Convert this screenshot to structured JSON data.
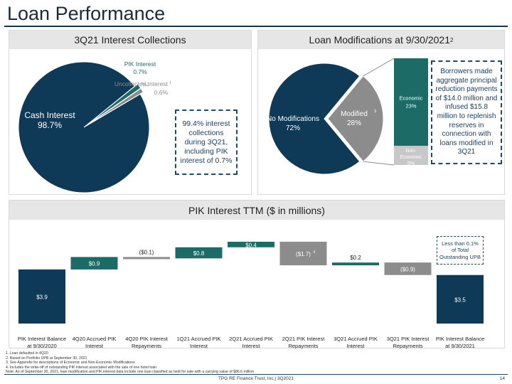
{
  "page": {
    "title": "Loan Performance",
    "footer_center": "TPG RE Finance Trust, Inc.| 3Q2021",
    "page_number": "14",
    "footnotes": [
      "1. Loan defaulted in 4Q20",
      "2. Based on Portfolio UPB at September 30, 2021",
      "3. See Appendix for descriptions of Economic and Non-Economic Modifications",
      "4. Includes the write-off of outstanding PIK interest associated with the sale of one hotel loan",
      "Note: As of September 30, 2021, loan modification and PIK interest data include one loan classified as held for sale with a carrying value of $86.6 million"
    ]
  },
  "panels": {
    "collections_title": "3Q21 Interest Collections",
    "modifications_title": "Loan Modifications at 9/30/2021",
    "modifications_title_sup": "2",
    "pik_title": "PIK Interest TTM ($ in millions)"
  },
  "callouts": {
    "collections": "99.4% interest collections during 3Q21, including PIK interest of 0.7%",
    "modifications": "Borrowers made aggregate principal reduction payments of $14.0 million and infused $15.8 million to replenish reserves in connection with loans modified in 3Q21",
    "pik": "Less than 0.1% of Total Outstanding UPB"
  },
  "chart_data": [
    {
      "type": "pie",
      "title": "3Q21 Interest Collections",
      "slices": [
        {
          "label": "Cash Interest",
          "value": 98.7,
          "display": "98.7%",
          "color": "#0f3a57"
        },
        {
          "label": "PIK Interest",
          "value": 0.7,
          "display": "0.7%",
          "color": "#1d6b66"
        },
        {
          "label": "Uncollected Interest",
          "label_sup": "1",
          "value": 0.6,
          "display": "0.6%",
          "color": "#8c8c8c"
        }
      ]
    },
    {
      "type": "pie",
      "title": "Loan Modifications at 9/30/2021",
      "slices": [
        {
          "label": "No Modifications",
          "value": 72,
          "display": "72%",
          "color": "#0f3a57"
        },
        {
          "label": "Modified",
          "label_sup": "3",
          "value": 28,
          "display": "28%",
          "color": "#8c8c8c"
        }
      ],
      "breakdown": [
        {
          "label": "Economic",
          "value": 23,
          "display": "23%",
          "color": "#1d6b66"
        },
        {
          "label": "Non-Economic",
          "value": 5,
          "display": "5%",
          "color": "#c8c8c8"
        }
      ]
    },
    {
      "type": "bar",
      "subtype": "waterfall",
      "title": "PIK Interest TTM ($ in millions)",
      "categories": [
        "PIK Interest Balance at 9/30/2020",
        "4Q20 Accrued PIK Interest",
        "4Q20 PIK Interest Repayments",
        "1Q21 Accrued PIK Interest",
        "2Q21 Accrued PIK Interest",
        "2Q21 PIK Interest Repayments",
        "3Q21 Accrued PIK Interest",
        "3Q21 PIK Interest Repayments",
        "PIK Interest Balance at 9/30/2021"
      ],
      "values": [
        3.9,
        0.9,
        -0.1,
        0.8,
        0.4,
        -1.7,
        0.2,
        -0.9,
        3.5
      ],
      "kinds": [
        "total",
        "delta",
        "delta",
        "delta",
        "delta",
        "delta",
        "delta",
        "delta",
        "total"
      ],
      "labels": [
        "$3.9",
        "$0.9",
        "($0.1)",
        "$0.8",
        "$0.4",
        "($1.7)",
        "$0.2",
        "($0.9)",
        "$3.5"
      ],
      "label_sups": [
        "",
        "",
        "",
        "",
        "",
        "4",
        "",
        "",
        ""
      ],
      "colors": {
        "total": "#0f3a57",
        "increase": "#1d6b66",
        "decrease": "#8c8c8c"
      }
    }
  ]
}
